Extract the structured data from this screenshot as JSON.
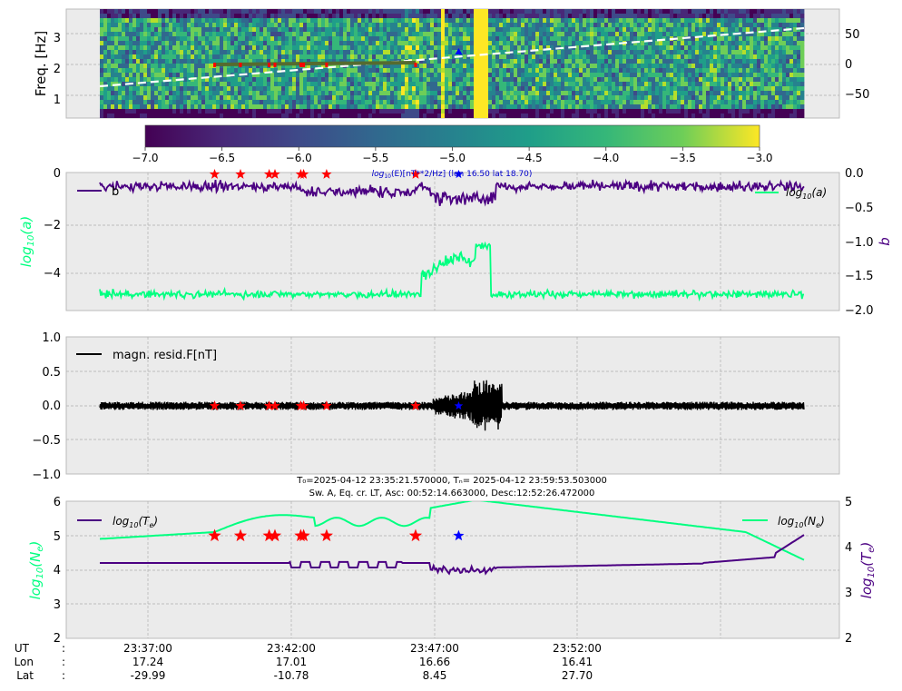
{
  "chart_data": [
    {
      "type": "heatmap",
      "ylabel": "Freq. [Hz]",
      "yticks": [
        "1",
        "2",
        "3"
      ],
      "y2ticks": [
        "50",
        "0",
        "−50"
      ],
      "colorbar_ticks": [
        "−7.0",
        "−6.5",
        "−6.0",
        "−5.5",
        "−5.0",
        "−4.5",
        "−4.0",
        "−3.5",
        "−3.0"
      ],
      "colorbar_range": [
        -7.0,
        -3.0
      ],
      "colorbar_label_prefix": "log",
      "colorbar_label_sub": "10",
      "colorbar_label_rest": "(E)[nT**2/Hz] (lon 16.50 lat 18.70)",
      "colors": {
        "low": "#440154",
        "mid": "#21918c",
        "high": "#fde725",
        "dashed_line": "#ffffff"
      }
    },
    {
      "type": "line",
      "ylabel": "log10(a)",
      "y2label": "b",
      "yticks": [
        "0",
        "−2",
        "−4"
      ],
      "y2ticks": [
        "0.0",
        "−0.5",
        "−1.0",
        "−1.5",
        "−2.0"
      ],
      "ylim": [
        -5.5,
        0
      ],
      "y2lim": [
        -2.0,
        0
      ],
      "series": [
        {
          "name": "b",
          "color": "#4b0082",
          "axis": "right",
          "baseline": -0.2
        },
        {
          "name": "log10(a)",
          "color": "#00ff80",
          "axis": "left",
          "baseline": -4.8
        }
      ],
      "colors": {
        "red_markers": "#ff0000",
        "blue_marker": "#0000ff"
      }
    },
    {
      "type": "line",
      "yticks": [
        "1.0",
        "0.5",
        "0.0",
        "−0.5",
        "−1.0"
      ],
      "ylim": [
        -1.0,
        1.0
      ],
      "series": [
        {
          "name": "magn. resid.F[nT]",
          "color": "#000000"
        }
      ],
      "title_line1": "T₀=2025-04-12 23:35:21.570000, Tₙ= 2025-04-12 23:59:53.503000",
      "title_line2": "Sw. A, Eq. cr. LT, Asc: 00:52:14.663000, Desc:12:52:26.472000"
    },
    {
      "type": "line",
      "ylabel": "log10(Ne)",
      "y2label": "log10(Te)",
      "yticks": [
        "6",
        "5",
        "4",
        "3",
        "2"
      ],
      "y2ticks": [
        "5",
        "4",
        "3",
        "2"
      ],
      "ylim": [
        2,
        6
      ],
      "y2lim": [
        2,
        5
      ],
      "series": [
        {
          "name": "log10(Te)",
          "color": "#4b0082",
          "axis": "right"
        },
        {
          "name": "log10(Ne)",
          "color": "#00ff80",
          "axis": "left"
        }
      ]
    }
  ],
  "xaxis": {
    "row_labels": [
      "UT",
      "Lon",
      "Lat"
    ],
    "separator": ":",
    "ticks": [
      {
        "ut": "23:37:00",
        "lon": "17.24",
        "lat": "-29.99"
      },
      {
        "ut": "23:42:00",
        "lon": "17.01",
        "lat": "-10.78"
      },
      {
        "ut": "23:47:00",
        "lon": "16.66",
        "lat": "8.45"
      },
      {
        "ut": "23:52:00",
        "lon": "16.41",
        "lat": "27.70"
      }
    ]
  },
  "events": {
    "red_times_min": [
      4.0,
      4.9,
      5.9,
      6.1,
      7.0,
      7.1,
      7.9,
      11.0
    ],
    "blue_time_min": 12.5
  }
}
